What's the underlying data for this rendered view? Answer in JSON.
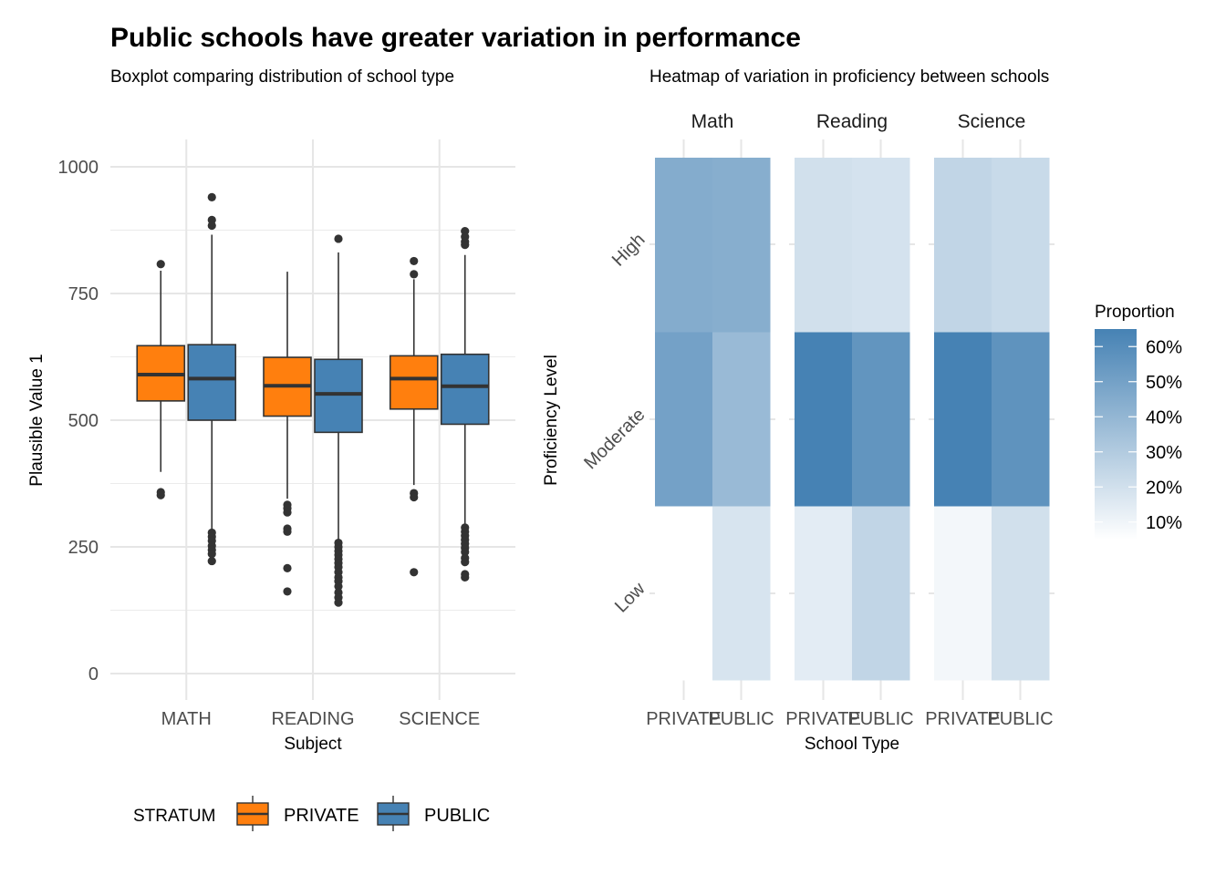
{
  "title": "Public schools have greater variation in performance",
  "chart_data": [
    {
      "type": "boxplot",
      "subtitle": "Boxplot comparing distribution of school type",
      "xlabel": "Subject",
      "ylabel": "Plausible Value 1",
      "ylim": [
        -60,
        1050
      ],
      "yticks": [
        0,
        250,
        500,
        750,
        1000
      ],
      "categories": [
        "MATH",
        "READING",
        "SCIENCE"
      ],
      "legend": {
        "title": "STRATUM",
        "position": "bottom",
        "items": [
          {
            "name": "PRIVATE",
            "color": "#FF7F0E"
          },
          {
            "name": "PUBLIC",
            "color": "#4682B4"
          }
        ]
      },
      "series": [
        {
          "name": "PRIVATE",
          "color": "#FF7F0E",
          "boxes": [
            {
              "category": "MATH",
              "lower_whisker": 398,
              "q1": 538,
              "median": 590,
              "q3": 647,
              "upper_whisker": 795,
              "outliers": [
                808,
                358,
                352
              ]
            },
            {
              "category": "READING",
              "lower_whisker": 345,
              "q1": 508,
              "median": 568,
              "q3": 624,
              "upper_whisker": 793,
              "outliers": [
                333,
                326,
                318,
                286,
                280,
                208,
                162
              ]
            },
            {
              "category": "SCIENCE",
              "lower_whisker": 372,
              "q1": 522,
              "median": 582,
              "q3": 627,
              "upper_whisker": 778,
              "outliers": [
                814,
                788,
                356,
                348,
                200
              ]
            }
          ]
        },
        {
          "name": "PUBLIC",
          "color": "#4682B4",
          "boxes": [
            {
              "category": "MATH",
              "lower_whisker": 286,
              "q1": 500,
              "median": 582,
              "q3": 649,
              "upper_whisker": 866,
              "outliers": [
                940,
                895,
                884,
                278,
                270,
                262,
                252,
                244,
                236,
                222
              ]
            },
            {
              "category": "READING",
              "lower_whisker": 262,
              "q1": 476,
              "median": 552,
              "q3": 620,
              "upper_whisker": 831,
              "outliers": [
                858,
                258,
                250,
                242,
                234,
                226,
                218,
                210,
                200,
                190,
                182,
                172,
                160,
                150,
                140
              ]
            },
            {
              "category": "SCIENCE",
              "lower_whisker": 292,
              "q1": 492,
              "median": 567,
              "q3": 630,
              "upper_whisker": 826,
              "outliers": [
                873,
                862,
                852,
                846,
                288,
                280,
                272,
                264,
                256,
                248,
                240,
                228,
                220,
                196,
                190
              ]
            }
          ]
        }
      ]
    },
    {
      "type": "heatmap",
      "subtitle": "Heatmap of variation in proficiency between schools",
      "xlabel": "School Type",
      "ylabel": "Proficiency Level",
      "facets": [
        "Math",
        "Reading",
        "Science"
      ],
      "x": [
        "PRIVATE",
        "PUBLIC"
      ],
      "y": [
        "Low",
        "Moderate",
        "High"
      ],
      "legend": {
        "title": "Proportion",
        "min": 0.05,
        "max": 0.65,
        "ticks": [
          {
            "v": 0.1,
            "label": "10%"
          },
          {
            "v": 0.2,
            "label": "20%"
          },
          {
            "v": 0.3,
            "label": "30%"
          },
          {
            "v": 0.4,
            "label": "40%"
          },
          {
            "v": 0.5,
            "label": "50%"
          },
          {
            "v": 0.6,
            "label": "60%"
          }
        ],
        "low_color": "#FFFFFF",
        "high_color": "#4682B4"
      },
      "values": {
        "Math": {
          "PRIVATE": {
            "Low": 0.05,
            "Moderate": 0.5,
            "High": 0.45
          },
          "PUBLIC": {
            "Low": 0.18,
            "Moderate": 0.38,
            "High": 0.44
          }
        },
        "Reading": {
          "PRIVATE": {
            "Low": 0.14,
            "Moderate": 0.66,
            "High": 0.2
          },
          "PUBLIC": {
            "Low": 0.25,
            "Moderate": 0.56,
            "High": 0.19
          }
        },
        "Science": {
          "PRIVATE": {
            "Low": 0.09,
            "Moderate": 0.66,
            "High": 0.25
          },
          "PUBLIC": {
            "Low": 0.2,
            "Moderate": 0.57,
            "High": 0.23
          }
        }
      }
    }
  ]
}
